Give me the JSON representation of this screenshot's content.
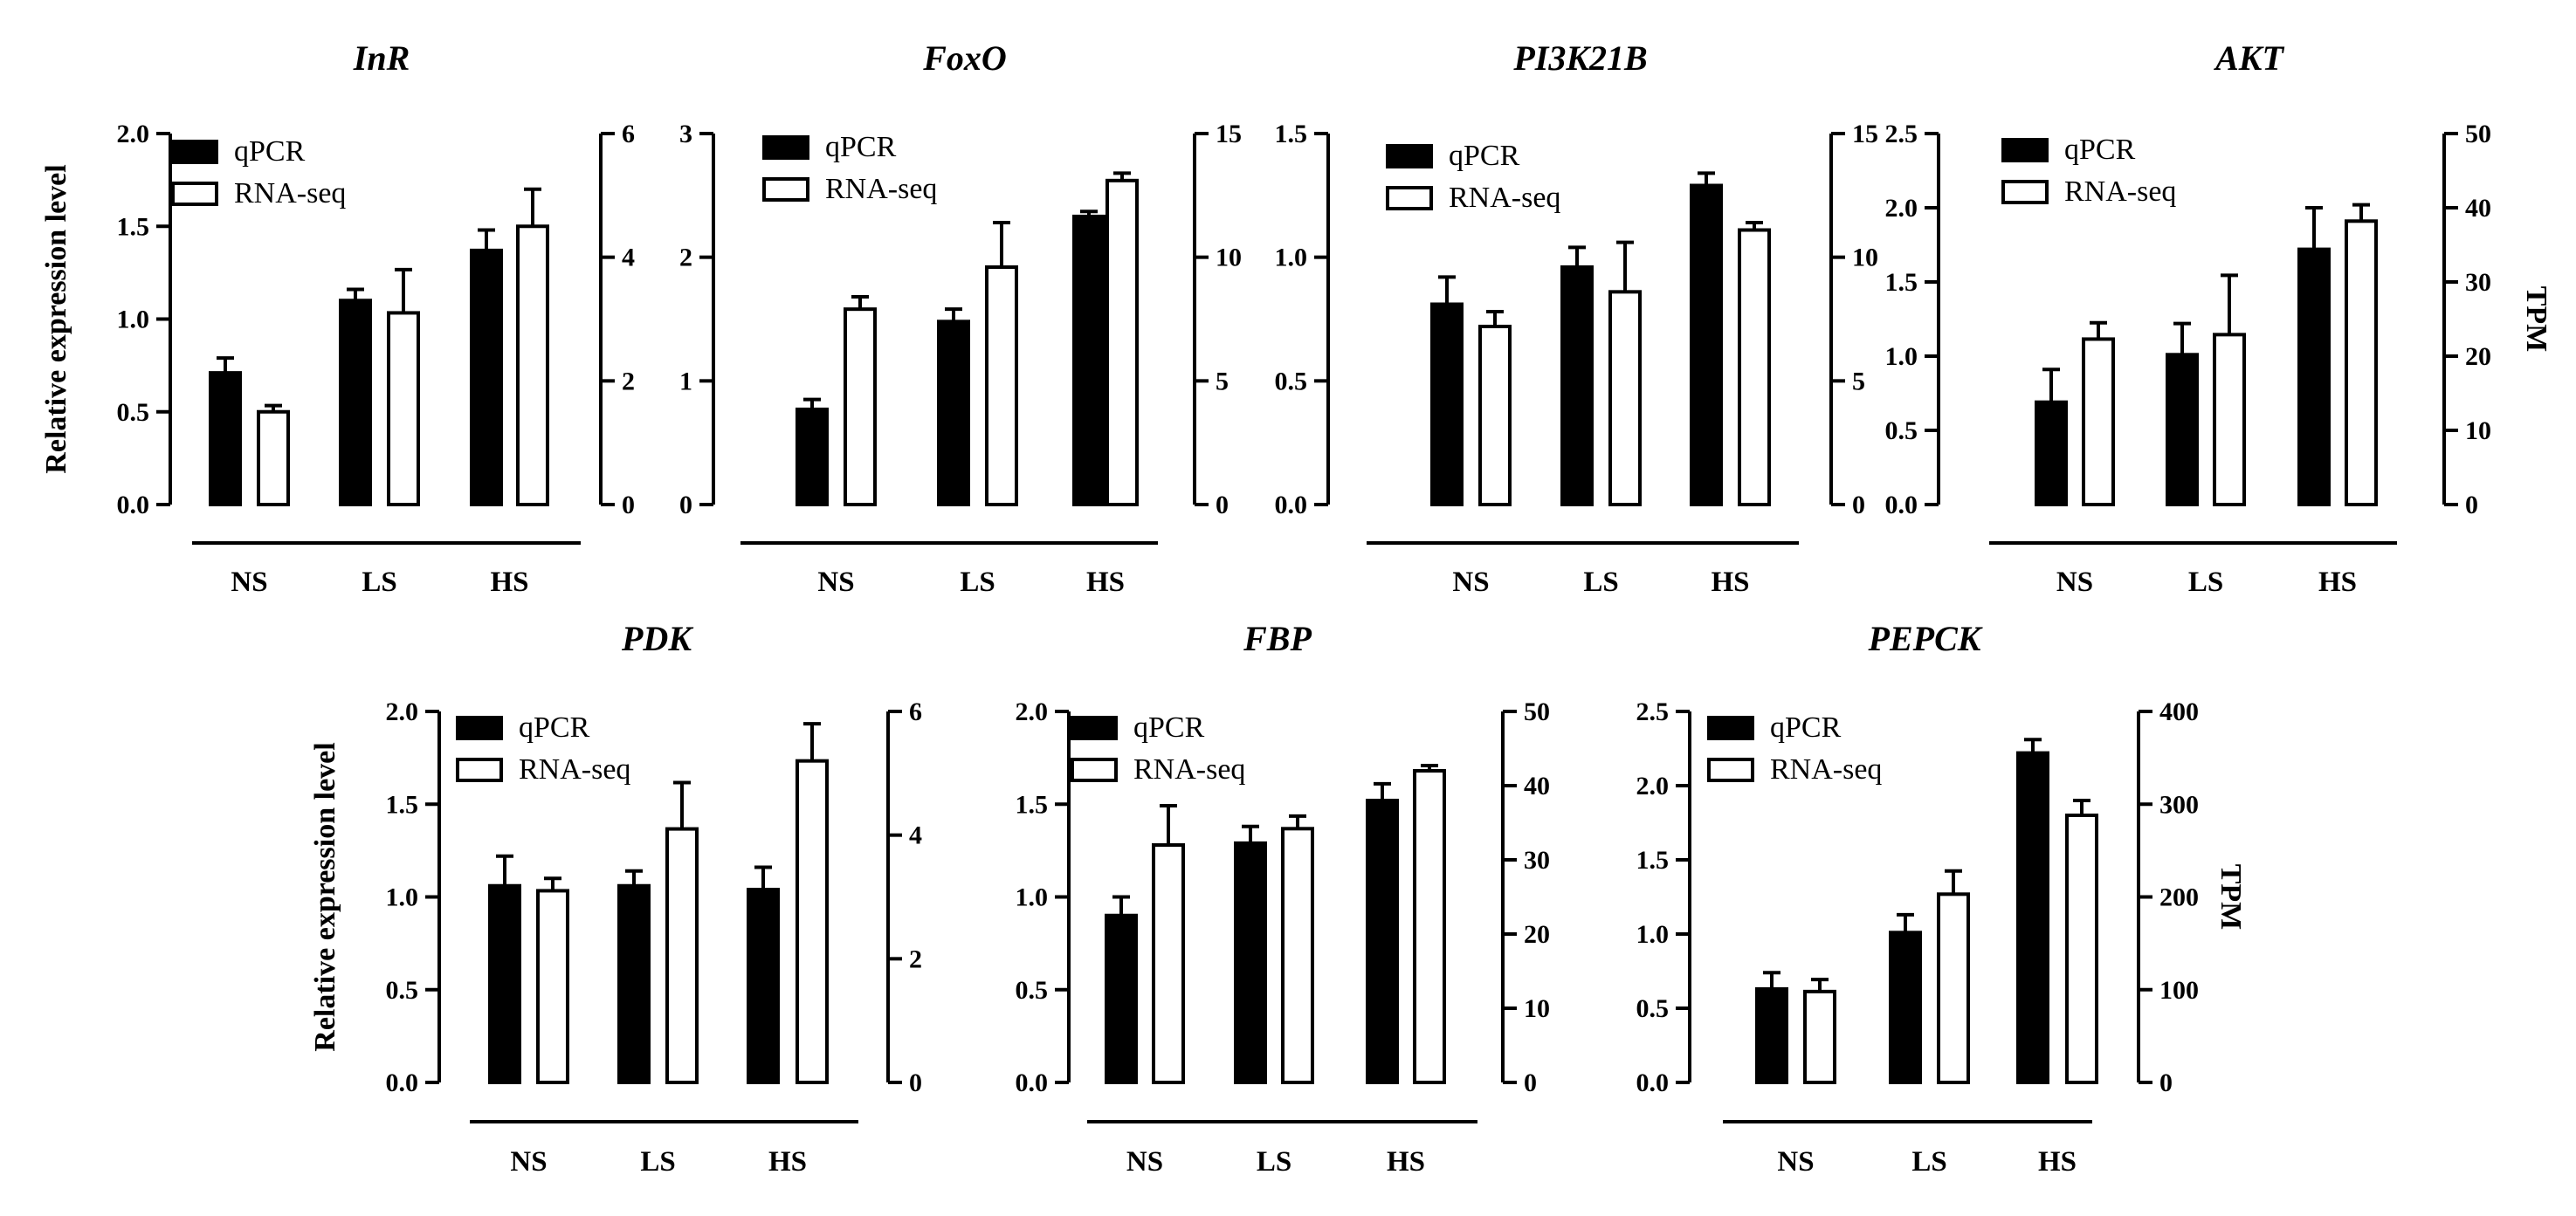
{
  "chart_data": [
    {
      "type": "bar",
      "title": "InR",
      "categories": [
        "NS",
        "LS",
        "HS"
      ],
      "ylabel": "Relative expression level",
      "ylabel_right": "",
      "ylim": [
        0,
        2.0
      ],
      "yticks": [
        "0.0",
        "0.5",
        "1.0",
        "1.5",
        "2.0"
      ],
      "y2lim": [
        0,
        6
      ],
      "y2ticks": [
        "0",
        "2",
        "4",
        "6"
      ],
      "legend": [
        "qPCR",
        "RNA-seq"
      ],
      "series": [
        {
          "name": "qPCR",
          "axis": "left",
          "values": [
            0.71,
            1.1,
            1.37
          ],
          "errors": [
            0.08,
            0.06,
            0.11
          ]
        },
        {
          "name": "RNA-seq",
          "axis": "right",
          "values": [
            1.5,
            3.1,
            4.5
          ],
          "errors": [
            0.1,
            0.7,
            0.6
          ]
        }
      ]
    },
    {
      "type": "bar",
      "title": "FoxO",
      "categories": [
        "NS",
        "LS",
        "HS"
      ],
      "ylabel": "",
      "ylabel_right": "",
      "ylim": [
        0,
        3
      ],
      "yticks": [
        "0",
        "1",
        "2",
        "3"
      ],
      "y2lim": [
        0,
        15
      ],
      "y2ticks": [
        "0",
        "5",
        "10",
        "15"
      ],
      "legend": [
        "qPCR",
        "RNA-seq"
      ],
      "series": [
        {
          "name": "qPCR",
          "axis": "left",
          "values": [
            0.77,
            1.48,
            2.33
          ],
          "errors": [
            0.08,
            0.1,
            0.04
          ]
        },
        {
          "name": "RNA-seq",
          "axis": "right",
          "values": [
            7.9,
            9.6,
            13.1
          ],
          "errors": [
            0.5,
            1.8,
            0.3
          ]
        }
      ]
    },
    {
      "type": "bar",
      "title": "PI3K21B",
      "categories": [
        "NS",
        "LS",
        "HS"
      ],
      "ylabel": "",
      "ylabel_right": "",
      "ylim": [
        0,
        1.5
      ],
      "yticks": [
        "0.0",
        "0.5",
        "1.0",
        "1.5"
      ],
      "y2lim": [
        0,
        15
      ],
      "y2ticks": [
        "0",
        "5",
        "10",
        "15"
      ],
      "legend": [
        "qPCR",
        "RNA-seq"
      ],
      "series": [
        {
          "name": "qPCR",
          "axis": "left",
          "values": [
            0.81,
            0.96,
            1.29
          ],
          "errors": [
            0.11,
            0.08,
            0.05
          ]
        },
        {
          "name": "RNA-seq",
          "axis": "right",
          "values": [
            7.2,
            8.6,
            11.1
          ],
          "errors": [
            0.6,
            2.0,
            0.3
          ]
        }
      ]
    },
    {
      "type": "bar",
      "title": "AKT",
      "categories": [
        "NS",
        "LS",
        "HS"
      ],
      "ylabel": "",
      "ylabel_right": "TPM",
      "ylim": [
        0,
        2.5
      ],
      "yticks": [
        "0.0",
        "0.5",
        "1.0",
        "1.5",
        "2.0",
        "2.5"
      ],
      "y2lim": [
        0,
        50
      ],
      "y2ticks": [
        "0",
        "10",
        "20",
        "30",
        "40",
        "50"
      ],
      "legend": [
        "qPCR",
        "RNA-seq"
      ],
      "series": [
        {
          "name": "qPCR",
          "axis": "left",
          "values": [
            0.69,
            1.01,
            1.72
          ],
          "errors": [
            0.22,
            0.21,
            0.28
          ]
        },
        {
          "name": "RNA-seq",
          "axis": "right",
          "values": [
            22.3,
            22.9,
            38.2
          ],
          "errors": [
            2.2,
            8.0,
            2.2
          ]
        }
      ]
    },
    {
      "type": "bar",
      "title": "PDK",
      "categories": [
        "NS",
        "LS",
        "HS"
      ],
      "ylabel": "Relative expression level",
      "ylabel_right": "",
      "ylim": [
        0,
        2.0
      ],
      "yticks": [
        "0.0",
        "0.5",
        "1.0",
        "1.5",
        "2.0"
      ],
      "y2lim": [
        0,
        6
      ],
      "y2ticks": [
        "0",
        "2",
        "4",
        "6"
      ],
      "legend": [
        "qPCR",
        "RNA-seq"
      ],
      "series": [
        {
          "name": "qPCR",
          "axis": "left",
          "values": [
            1.06,
            1.06,
            1.04
          ],
          "errors": [
            0.16,
            0.08,
            0.12
          ]
        },
        {
          "name": "RNA-seq",
          "axis": "right",
          "values": [
            3.1,
            4.1,
            5.2
          ],
          "errors": [
            0.2,
            0.75,
            0.6
          ]
        }
      ]
    },
    {
      "type": "bar",
      "title": "FBP",
      "categories": [
        "NS",
        "LS",
        "HS"
      ],
      "ylabel": "",
      "ylabel_right": "",
      "ylim": [
        0,
        2.0
      ],
      "yticks": [
        "0.0",
        "0.5",
        "1.0",
        "1.5",
        "2.0"
      ],
      "y2lim": [
        0,
        50
      ],
      "y2ticks": [
        "0",
        "10",
        "20",
        "30",
        "40",
        "50"
      ],
      "legend": [
        "qPCR",
        "RNA-seq"
      ],
      "series": [
        {
          "name": "qPCR",
          "axis": "left",
          "values": [
            0.9,
            1.29,
            1.52
          ],
          "errors": [
            0.1,
            0.09,
            0.09
          ]
        },
        {
          "name": "RNA-seq",
          "axis": "right",
          "values": [
            32.0,
            34.2,
            42.0
          ],
          "errors": [
            5.3,
            1.7,
            0.7
          ]
        }
      ]
    },
    {
      "type": "bar",
      "title": "PEPCK",
      "categories": [
        "NS",
        "LS",
        "HS"
      ],
      "ylabel": "",
      "ylabel_right": "TPM",
      "ylim": [
        0,
        2.5
      ],
      "yticks": [
        "0.0",
        "0.5",
        "1.0",
        "1.5",
        "2.0",
        "2.5"
      ],
      "y2lim": [
        0,
        400
      ],
      "y2ticks": [
        "0",
        "100",
        "200",
        "300",
        "400"
      ],
      "legend": [
        "qPCR",
        "RNA-seq"
      ],
      "series": [
        {
          "name": "qPCR",
          "axis": "left",
          "values": [
            0.63,
            1.01,
            2.22
          ],
          "errors": [
            0.11,
            0.12,
            0.09
          ]
        },
        {
          "name": "RNA-seq",
          "axis": "right",
          "values": [
            98,
            203,
            288
          ],
          "errors": [
            13,
            25,
            16
          ]
        }
      ]
    }
  ]
}
